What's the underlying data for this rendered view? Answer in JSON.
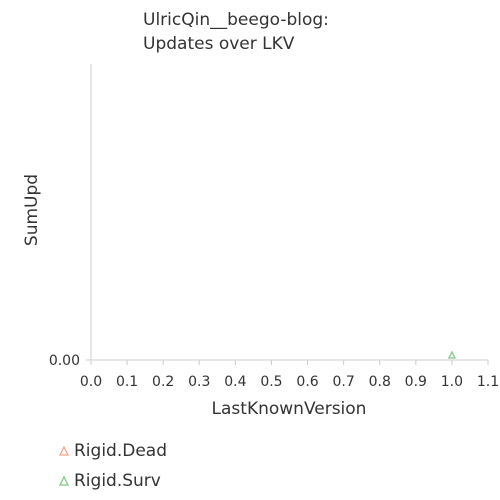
{
  "chart_data": {
    "type": "scatter",
    "title_lines": [
      "UlricQin__beego-blog:",
      "Updates over LKV"
    ],
    "xlabel": "LastKnownVersion",
    "ylabel": "SumUpd",
    "xlim": [
      0.0,
      1.1
    ],
    "x_ticks": [
      "0.0",
      "0.1",
      "0.2",
      "0.3",
      "0.4",
      "0.5",
      "0.6",
      "0.7",
      "0.8",
      "0.9",
      "1.0",
      "1.1"
    ],
    "y_ticks": [
      "0.00"
    ],
    "grid": false,
    "legend_position": "bottom-left",
    "series": [
      {
        "name": "Rigid.Dead",
        "color": "#f4a582",
        "marker": "triangle",
        "points": []
      },
      {
        "name": "Rigid.Surv",
        "color": "#7fc97f",
        "marker": "triangle",
        "points": [
          {
            "x": 1.0,
            "y": 0.0
          }
        ]
      }
    ]
  }
}
